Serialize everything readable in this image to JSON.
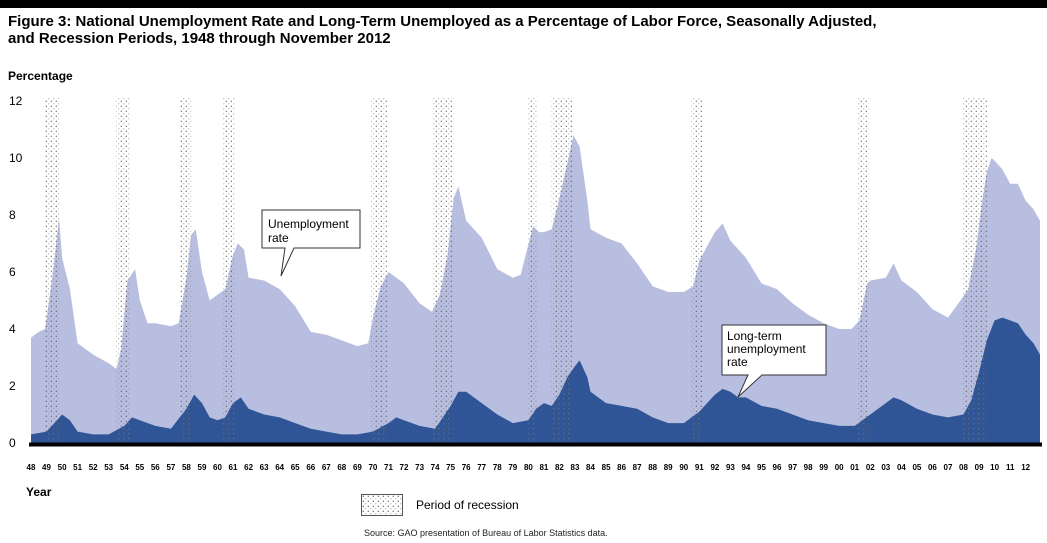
{
  "figure": {
    "title_line1": "Figure 3: National Unemployment Rate and Long-Term Unemployed as a Percentage of Labor Force, Seasonally Adjusted,",
    "title_line2": "and Recession Periods, 1948 through November 2012",
    "source": "Source: GAO presentation of Bureau of Labor Statistics data.",
    "legend_recession": "Period of recession"
  },
  "colors": {
    "unemployment": "#b8bedf",
    "long_term": "#2f5597",
    "axis": "#000000",
    "recession_dots": "#555555"
  },
  "chart_data": {
    "type": "area",
    "ylabel": "Percentage",
    "xlabel": "Year",
    "ylim": [
      0,
      12
    ],
    "xlim": [
      1948,
      2012.92
    ],
    "yticks": [
      "0",
      "2",
      "4",
      "6",
      "8",
      "10",
      "12"
    ],
    "xticks": [
      "48",
      "49",
      "50",
      "51",
      "52",
      "53",
      "54",
      "55",
      "56",
      "57",
      "58",
      "59",
      "60",
      "61",
      "62",
      "63",
      "64",
      "65",
      "66",
      "67",
      "68",
      "69",
      "70",
      "71",
      "72",
      "73",
      "74",
      "75",
      "76",
      "77",
      "78",
      "79",
      "80",
      "81",
      "82",
      "83",
      "84",
      "85",
      "86",
      "87",
      "88",
      "89",
      "90",
      "91",
      "92",
      "93",
      "94",
      "95",
      "96",
      "97",
      "98",
      "99",
      "00",
      "01",
      "02",
      "03",
      "04",
      "05",
      "06",
      "07",
      "08",
      "09",
      "10",
      "11",
      "12"
    ],
    "grid": false,
    "recessions": [
      [
        1948.9,
        1949.8
      ],
      [
        1953.5,
        1954.4
      ],
      [
        1957.6,
        1958.3
      ],
      [
        1960.3,
        1961.1
      ],
      [
        1969.9,
        1970.9
      ],
      [
        1973.9,
        1975.2
      ],
      [
        1980.0,
        1980.5
      ],
      [
        1981.5,
        1982.9
      ],
      [
        1990.5,
        1991.2
      ],
      [
        2001.2,
        2001.9
      ],
      [
        2007.9,
        2009.5
      ]
    ],
    "series": [
      {
        "name": "Unemployment rate",
        "x": [
          1948.0,
          1948.5,
          1948.9,
          1949.3,
          1949.6,
          1949.8,
          1950.0,
          1950.5,
          1951.0,
          1952.0,
          1953.0,
          1953.5,
          1953.8,
          1954.2,
          1954.7,
          1955.0,
          1955.5,
          1956.0,
          1957.0,
          1957.5,
          1958.0,
          1958.3,
          1958.6,
          1959.0,
          1959.5,
          1960.0,
          1960.5,
          1961.0,
          1961.3,
          1961.7,
          1962.0,
          1963.0,
          1964.0,
          1965.0,
          1966.0,
          1967.0,
          1968.0,
          1969.0,
          1969.7,
          1970.0,
          1970.5,
          1971.0,
          1972.0,
          1973.0,
          1973.8,
          1974.3,
          1974.8,
          1975.2,
          1975.5,
          1976.0,
          1977.0,
          1978.0,
          1979.0,
          1979.5,
          1980.3,
          1980.7,
          1981.0,
          1981.5,
          1982.0,
          1982.5,
          1982.9,
          1983.3,
          1983.8,
          1984.0,
          1985.0,
          1986.0,
          1987.0,
          1988.0,
          1989.0,
          1990.0,
          1990.6,
          1991.0,
          1991.5,
          1992.0,
          1992.5,
          1993.0,
          1994.0,
          1995.0,
          1996.0,
          1997.0,
          1998.0,
          1999.0,
          2000.0,
          2000.8,
          2001.3,
          2001.8,
          2002.0,
          2003.0,
          2003.5,
          2004.0,
          2005.0,
          2006.0,
          2007.0,
          2007.8,
          2008.3,
          2008.8,
          2009.2,
          2009.5,
          2009.8,
          2010.0,
          2010.5,
          2011.0,
          2011.5,
          2012.0,
          2012.5,
          2012.92
        ],
        "values": [
          3.7,
          3.9,
          4.0,
          5.5,
          6.9,
          7.9,
          6.5,
          5.4,
          3.5,
          3.1,
          2.8,
          2.6,
          3.3,
          5.7,
          6.1,
          5.0,
          4.2,
          4.2,
          4.1,
          4.2,
          5.8,
          7.3,
          7.5,
          6.0,
          5.0,
          5.2,
          5.4,
          6.6,
          7.0,
          6.8,
          5.8,
          5.7,
          5.4,
          4.8,
          3.9,
          3.8,
          3.6,
          3.4,
          3.5,
          4.4,
          5.5,
          6.0,
          5.6,
          4.9,
          4.6,
          5.2,
          6.6,
          8.6,
          9.0,
          7.8,
          7.2,
          6.1,
          5.8,
          5.9,
          7.6,
          7.4,
          7.4,
          7.5,
          8.6,
          9.8,
          10.8,
          10.4,
          8.5,
          7.5,
          7.2,
          7.0,
          6.3,
          5.5,
          5.3,
          5.3,
          5.5,
          6.4,
          6.9,
          7.4,
          7.7,
          7.1,
          6.5,
          5.6,
          5.4,
          4.9,
          4.5,
          4.2,
          4.0,
          4.0,
          4.3,
          5.6,
          5.7,
          5.8,
          6.3,
          5.7,
          5.3,
          4.7,
          4.4,
          5.0,
          5.4,
          6.8,
          8.5,
          9.5,
          10.0,
          9.9,
          9.6,
          9.1,
          9.1,
          8.5,
          8.2,
          7.8
        ]
      },
      {
        "name": "Long-term unemployment rate",
        "x": [
          1948.0,
          1949.0,
          1949.5,
          1950.0,
          1950.5,
          1951.0,
          1952.0,
          1953.0,
          1954.0,
          1954.5,
          1955.0,
          1956.0,
          1957.0,
          1958.0,
          1958.5,
          1959.0,
          1959.5,
          1960.0,
          1960.5,
          1961.0,
          1961.5,
          1962.0,
          1963.0,
          1964.0,
          1965.0,
          1966.0,
          1967.0,
          1968.0,
          1969.0,
          1970.0,
          1971.0,
          1971.5,
          1972.0,
          1973.0,
          1974.0,
          1975.0,
          1975.5,
          1976.0,
          1977.0,
          1978.0,
          1979.0,
          1980.0,
          1980.5,
          1981.0,
          1981.5,
          1982.0,
          1982.5,
          1983.0,
          1983.3,
          1983.8,
          1984.0,
          1985.0,
          1986.0,
          1987.0,
          1988.0,
          1989.0,
          1990.0,
          1991.0,
          1992.0,
          1992.5,
          1993.0,
          1993.5,
          1994.0,
          1995.0,
          1996.0,
          1997.0,
          1998.0,
          1999.0,
          2000.0,
          2001.0,
          2002.0,
          2003.0,
          2003.5,
          2004.0,
          2005.0,
          2006.0,
          2007.0,
          2008.0,
          2008.5,
          2009.0,
          2009.5,
          2010.0,
          2010.5,
          2011.0,
          2011.5,
          2012.0,
          2012.5,
          2012.92
        ],
        "values": [
          0.3,
          0.4,
          0.7,
          1.0,
          0.8,
          0.4,
          0.3,
          0.3,
          0.6,
          0.9,
          0.8,
          0.6,
          0.5,
          1.2,
          1.7,
          1.4,
          0.9,
          0.8,
          0.9,
          1.4,
          1.6,
          1.2,
          1.0,
          0.9,
          0.7,
          0.5,
          0.4,
          0.3,
          0.3,
          0.4,
          0.7,
          0.9,
          0.8,
          0.6,
          0.5,
          1.3,
          1.8,
          1.8,
          1.4,
          1.0,
          0.7,
          0.8,
          1.2,
          1.4,
          1.3,
          1.7,
          2.3,
          2.7,
          2.9,
          2.3,
          1.8,
          1.4,
          1.3,
          1.2,
          0.9,
          0.7,
          0.7,
          1.1,
          1.7,
          1.9,
          1.8,
          1.6,
          1.6,
          1.3,
          1.2,
          1.0,
          0.8,
          0.7,
          0.6,
          0.6,
          1.0,
          1.4,
          1.6,
          1.5,
          1.2,
          1.0,
          0.9,
          1.0,
          1.5,
          2.5,
          3.6,
          4.3,
          4.4,
          4.3,
          4.2,
          3.8,
          3.5,
          3.1
        ]
      }
    ],
    "annotations": [
      {
        "lines": [
          "Unemployment",
          "rate"
        ]
      },
      {
        "lines": [
          "Long-term",
          "unemployment",
          "rate"
        ]
      }
    ]
  }
}
